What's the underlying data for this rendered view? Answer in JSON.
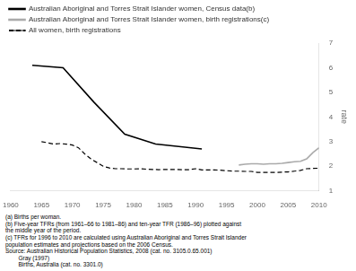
{
  "chart_data": {
    "type": "line",
    "ylabel": "rate",
    "xlim": [
      1960,
      2010
    ],
    "xticks": [
      1960,
      1965,
      1970,
      1975,
      1980,
      1985,
      1990,
      1995,
      2000,
      2005,
      2010
    ],
    "ylim": [
      1,
      7
    ],
    "yticks": [
      1,
      2,
      3,
      4,
      5,
      6,
      7
    ],
    "grid": false,
    "legend": "upper left",
    "series": [
      {
        "name": "Australian Aboriginal and Torres Strait Islander women, Census data(b)",
        "color": "#000000",
        "line_style": "solid",
        "x": [
          1963.5,
          1968.5,
          1973.5,
          1978.5,
          1983.5,
          1991
        ],
        "values": [
          6.1,
          6.0,
          4.6,
          3.3,
          2.9,
          2.7
        ]
      },
      {
        "name": "Australian Aboriginal and Torres Strait Islander women, birth registrations(c)",
        "color": "#aaaaaa",
        "line_style": "solid",
        "x": [
          1997,
          1998,
          1999,
          2000,
          2001,
          2002,
          2003,
          2004,
          2005,
          2006,
          2007,
          2008,
          2009,
          2010
        ],
        "values": [
          2.05,
          2.08,
          2.1,
          2.1,
          2.08,
          2.1,
          2.1,
          2.12,
          2.15,
          2.18,
          2.2,
          2.3,
          2.55,
          2.75
        ]
      },
      {
        "name": "All women, birth registrations",
        "color": "#000000",
        "line_style": "dashed",
        "x": [
          1965,
          1966,
          1967,
          1968,
          1969,
          1970,
          1971,
          1972,
          1973,
          1974,
          1975,
          1976,
          1977,
          1978,
          1979,
          1980,
          1981,
          1982,
          1983,
          1984,
          1985,
          1986,
          1987,
          1988,
          1989,
          1990,
          1991,
          1992,
          1993,
          1994,
          1995,
          1996,
          1997,
          1998,
          1999,
          2000,
          2001,
          2002,
          2003,
          2004,
          2005,
          2006,
          2007,
          2008,
          2009,
          2010
        ],
        "values": [
          3.0,
          2.95,
          2.9,
          2.92,
          2.9,
          2.86,
          2.75,
          2.5,
          2.3,
          2.15,
          2.0,
          1.93,
          1.9,
          1.9,
          1.89,
          1.89,
          1.9,
          1.88,
          1.87,
          1.86,
          1.87,
          1.87,
          1.87,
          1.86,
          1.86,
          1.9,
          1.85,
          1.85,
          1.85,
          1.84,
          1.82,
          1.8,
          1.8,
          1.79,
          1.79,
          1.75,
          1.75,
          1.75,
          1.75,
          1.76,
          1.77,
          1.8,
          1.83,
          1.9,
          1.91,
          1.92
        ]
      }
    ],
    "annotations": [
      "(a) Births per woman.",
      "(b) Five-year TFRs (from 1961–66 to 1981–86) and ten-year TFR (1986–96) plotted against",
      "the middle year of the period.",
      "(c) TFRs for 1996 to 2010 are calculated using Australian Aboriginal and Torres Strait Islander",
      "population estimates and projections based on the 2006 Census.",
      "Source: Australian Historical Population Statistics, 2008 (cat. no. 3105.0.65.001)",
      "        Gray (1997)",
      "        Births, Australia (cat. no. 3301.0)"
    ]
  }
}
